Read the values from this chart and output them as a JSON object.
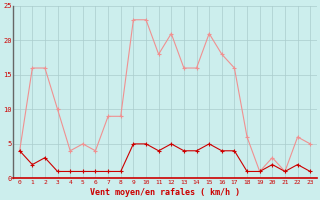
{
  "x": [
    0,
    1,
    2,
    3,
    4,
    5,
    6,
    7,
    8,
    9,
    10,
    11,
    12,
    13,
    14,
    15,
    16,
    17,
    18,
    19,
    20,
    21,
    22,
    23
  ],
  "rafales": [
    4,
    16,
    16,
    10,
    4,
    5,
    4,
    9,
    9,
    23,
    23,
    18,
    21,
    16,
    16,
    21,
    18,
    16,
    6,
    1,
    3,
    1,
    6,
    5
  ],
  "moyen": [
    4,
    2,
    3,
    1,
    1,
    1,
    1,
    1,
    1,
    5,
    5,
    4,
    5,
    4,
    4,
    5,
    4,
    4,
    1,
    1,
    2,
    1,
    2,
    1
  ],
  "bg_color": "#cceeed",
  "grid_color": "#aacccc",
  "line_rafales_color": "#f09090",
  "line_moyen_color": "#cc0000",
  "xlabel": "Vent moyen/en rafales ( km/h )",
  "xlabel_color": "#cc0000",
  "tick_color": "#cc0000",
  "spine_color": "#666666",
  "ylim": [
    0,
    25
  ],
  "yticks": [
    0,
    5,
    10,
    15,
    20,
    25
  ],
  "xticks": [
    0,
    1,
    2,
    3,
    4,
    5,
    6,
    7,
    8,
    9,
    10,
    11,
    12,
    13,
    14,
    15,
    16,
    17,
    18,
    19,
    20,
    21,
    22,
    23
  ]
}
